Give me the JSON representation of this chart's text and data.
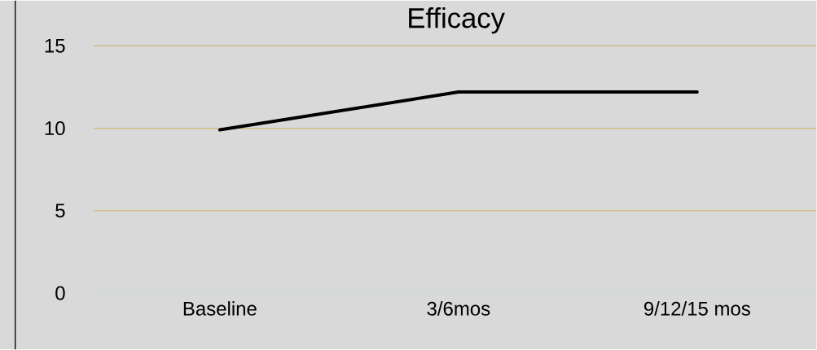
{
  "chart_data": {
    "type": "line",
    "title": "Efficacy",
    "categories": [
      "Baseline",
      "3/6mos",
      "9/12/15 mos"
    ],
    "series": [
      {
        "color": "#000000",
        "values": [
          9.9,
          12.2,
          12.2
        ]
      }
    ],
    "ylim": [
      0,
      15
    ],
    "yticks": [
      0,
      5,
      10,
      15
    ],
    "grid": "y",
    "legend": false,
    "marker": "none",
    "line_style": "solid"
  }
}
